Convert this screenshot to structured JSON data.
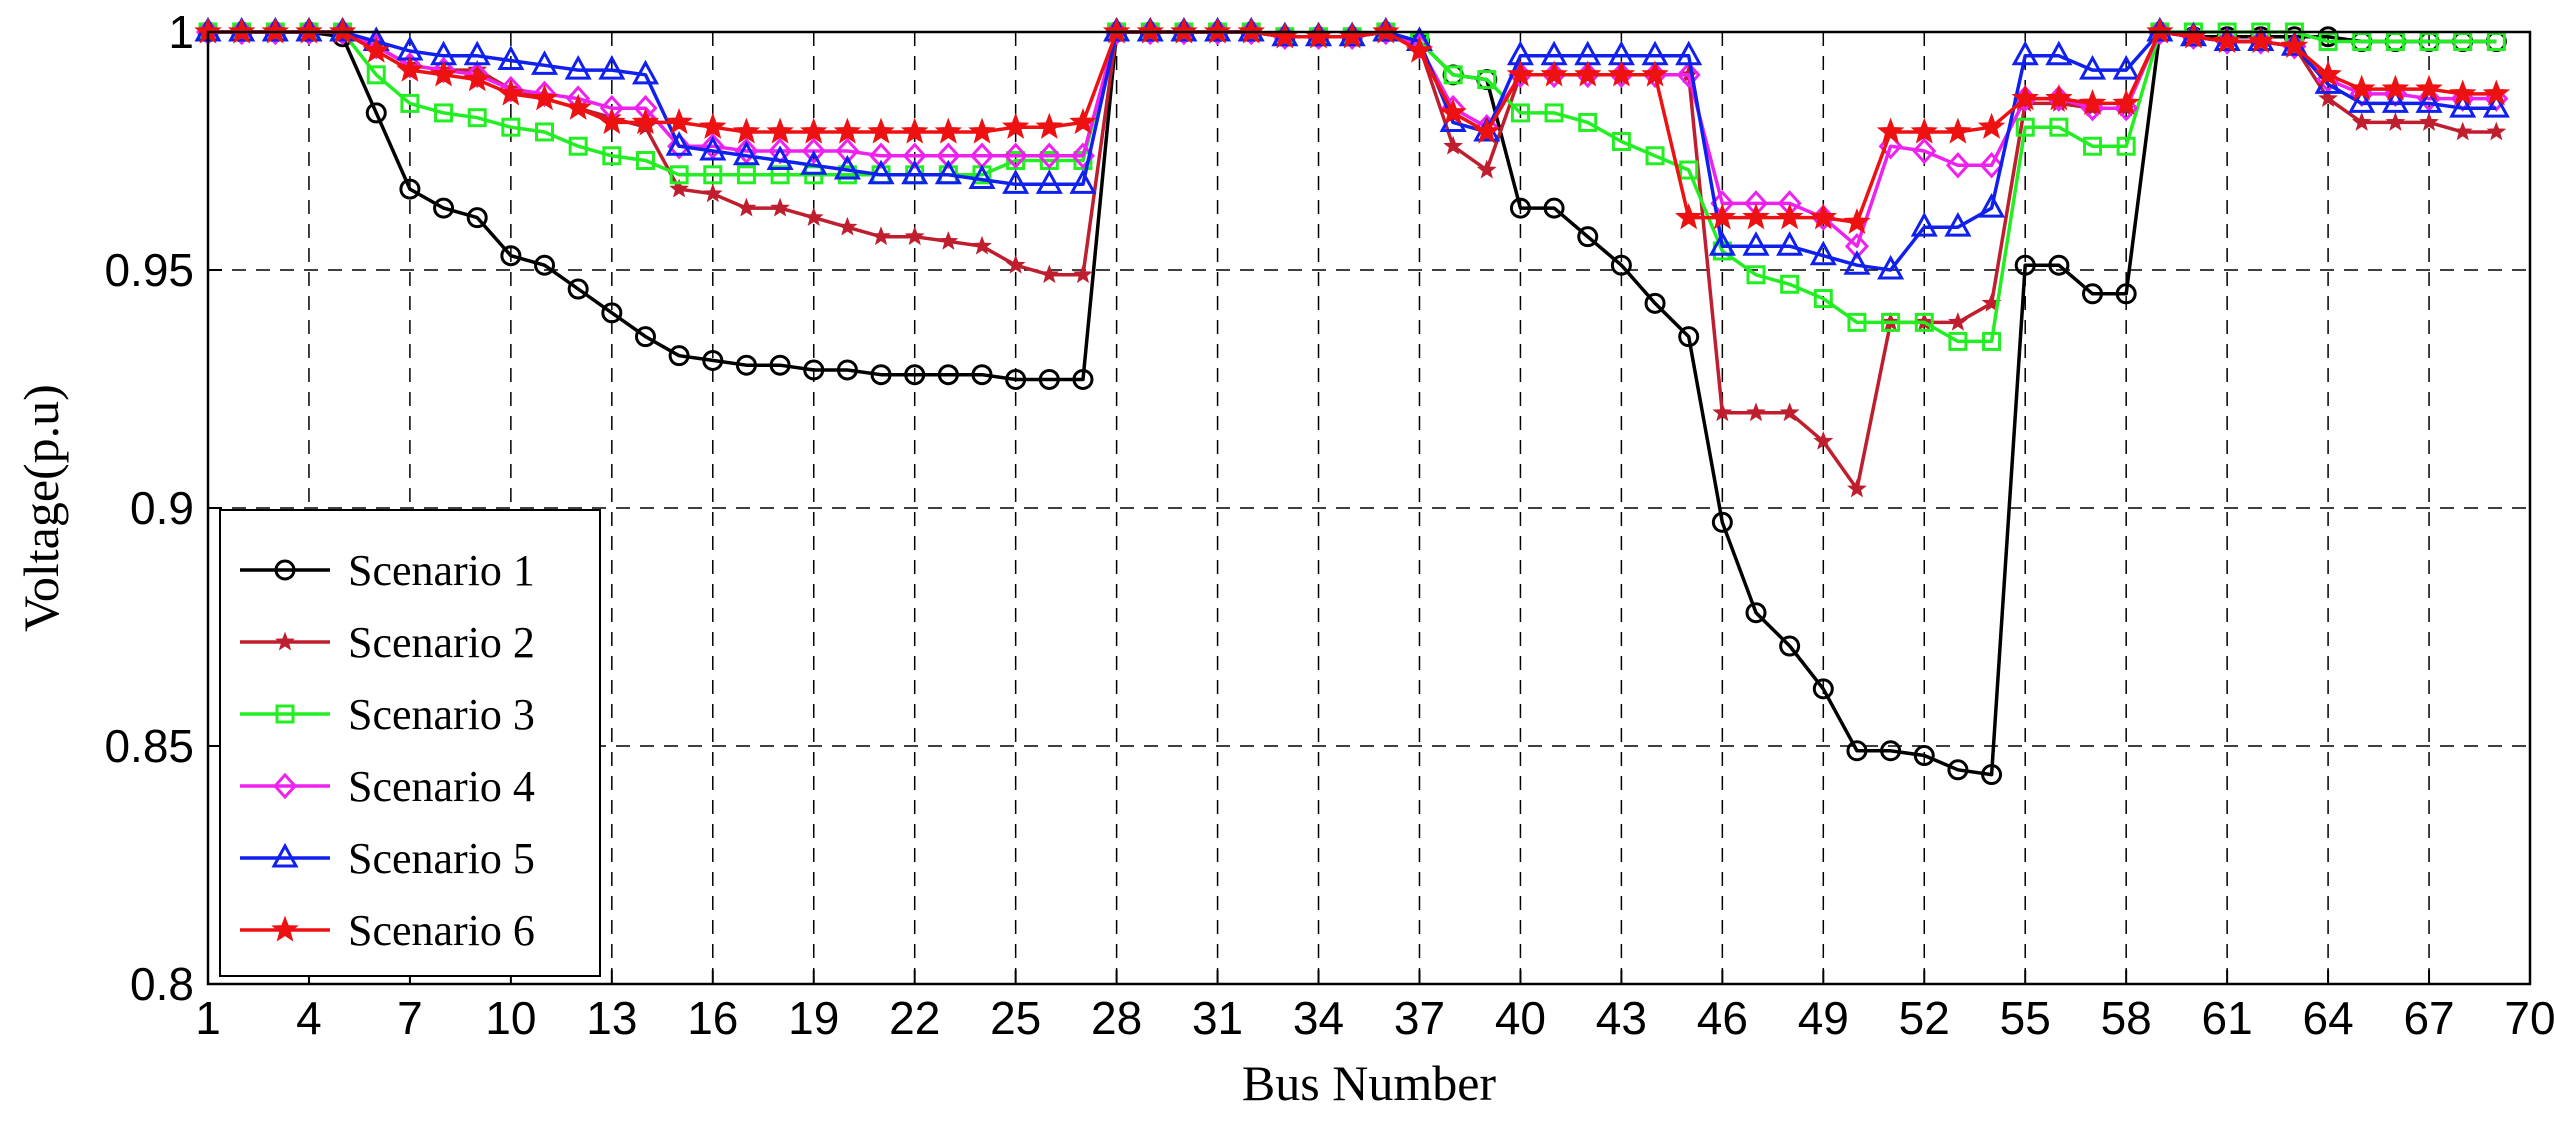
{
  "chart_data": {
    "type": "line",
    "xlabel": "Bus Number",
    "ylabel": "Voltage(p.u)",
    "xlim": [
      1,
      70
    ],
    "ylim": [
      0.8,
      1.0
    ],
    "xticks": [
      1,
      4,
      7,
      10,
      13,
      16,
      19,
      22,
      25,
      28,
      31,
      34,
      37,
      40,
      43,
      46,
      49,
      52,
      55,
      58,
      61,
      64,
      67,
      70
    ],
    "yticks": [
      0.8,
      0.85,
      0.9,
      0.95,
      1.0
    ],
    "ytick_labels": [
      "0.8",
      "0.85",
      "0.9",
      "0.95",
      "1"
    ],
    "grid": true,
    "legend_position": "lower-left",
    "x": [
      1,
      2,
      3,
      4,
      5,
      6,
      7,
      8,
      9,
      10,
      11,
      12,
      13,
      14,
      15,
      16,
      17,
      18,
      19,
      20,
      21,
      22,
      23,
      24,
      25,
      26,
      27,
      28,
      29,
      30,
      31,
      32,
      33,
      34,
      35,
      36,
      37,
      38,
      39,
      40,
      41,
      42,
      43,
      44,
      45,
      46,
      47,
      48,
      49,
      50,
      51,
      52,
      53,
      54,
      55,
      56,
      57,
      58,
      59,
      60,
      61,
      62,
      63,
      64,
      65,
      66,
      67,
      68,
      69
    ],
    "series": [
      {
        "name": "Scenario 1",
        "color": "#000000",
        "marker": "circle",
        "values": [
          1.0,
          1.0,
          1.0,
          1.0,
          0.999,
          0.983,
          0.967,
          0.963,
          0.961,
          0.953,
          0.951,
          0.946,
          0.941,
          0.936,
          0.932,
          0.931,
          0.93,
          0.93,
          0.929,
          0.929,
          0.928,
          0.928,
          0.928,
          0.928,
          0.927,
          0.927,
          0.927,
          1.0,
          1.0,
          1.0,
          1.0,
          1.0,
          0.999,
          0.999,
          0.999,
          1.0,
          0.998,
          0.991,
          0.99,
          0.963,
          0.963,
          0.957,
          0.951,
          0.943,
          0.936,
          0.897,
          0.878,
          0.871,
          0.862,
          0.849,
          0.849,
          0.848,
          0.845,
          0.844,
          0.951,
          0.951,
          0.945,
          0.945,
          1.0,
          0.999,
          0.999,
          0.999,
          0.999,
          0.999,
          0.998,
          0.998,
          0.998,
          0.998,
          0.998
        ]
      },
      {
        "name": "Scenario 2",
        "color": "#bf1e2e",
        "marker": "star",
        "values": [
          1.0,
          1.0,
          1.0,
          1.0,
          1.0,
          0.997,
          0.993,
          0.992,
          0.992,
          0.988,
          0.986,
          0.984,
          0.982,
          0.98,
          0.967,
          0.966,
          0.963,
          0.963,
          0.961,
          0.959,
          0.957,
          0.957,
          0.956,
          0.955,
          0.951,
          0.949,
          0.949,
          1.0,
          1.0,
          1.0,
          1.0,
          1.0,
          0.999,
          0.999,
          0.999,
          1.0,
          0.997,
          0.976,
          0.971,
          0.991,
          0.991,
          0.991,
          0.991,
          0.991,
          0.991,
          0.92,
          0.92,
          0.92,
          0.914,
          0.904,
          0.939,
          0.939,
          0.939,
          0.943,
          0.985,
          0.985,
          0.984,
          0.984,
          1.0,
          0.999,
          0.998,
          0.998,
          0.997,
          0.986,
          0.981,
          0.981,
          0.981,
          0.979,
          0.979
        ]
      },
      {
        "name": "Scenario 3",
        "color": "#22ee22",
        "marker": "square",
        "values": [
          1.0,
          1.0,
          1.0,
          1.0,
          1.0,
          0.991,
          0.985,
          0.983,
          0.982,
          0.98,
          0.979,
          0.976,
          0.974,
          0.973,
          0.97,
          0.97,
          0.97,
          0.97,
          0.97,
          0.97,
          0.97,
          0.97,
          0.97,
          0.97,
          0.973,
          0.973,
          0.973,
          1.0,
          1.0,
          1.0,
          1.0,
          1.0,
          0.999,
          0.999,
          0.999,
          1.0,
          0.998,
          0.991,
          0.99,
          0.983,
          0.983,
          0.981,
          0.977,
          0.974,
          0.971,
          0.954,
          0.949,
          0.947,
          0.944,
          0.939,
          0.939,
          0.939,
          0.935,
          0.935,
          0.98,
          0.98,
          0.976,
          0.976,
          1.0,
          1.0,
          1.0,
          1.0,
          1.0,
          0.998,
          0.998,
          0.998,
          0.998,
          0.998,
          0.998
        ]
      },
      {
        "name": "Scenario 4",
        "color": "#ee22ee",
        "marker": "diamond",
        "values": [
          1.0,
          1.0,
          1.0,
          1.0,
          1.0,
          0.997,
          0.993,
          0.992,
          0.991,
          0.988,
          0.987,
          0.986,
          0.984,
          0.984,
          0.976,
          0.976,
          0.975,
          0.975,
          0.975,
          0.975,
          0.974,
          0.974,
          0.974,
          0.974,
          0.974,
          0.974,
          0.974,
          1.0,
          1.0,
          1.0,
          1.0,
          1.0,
          0.999,
          0.999,
          0.999,
          1.0,
          0.997,
          0.984,
          0.98,
          0.991,
          0.991,
          0.991,
          0.991,
          0.991,
          0.991,
          0.964,
          0.964,
          0.964,
          0.961,
          0.955,
          0.976,
          0.975,
          0.972,
          0.972,
          0.986,
          0.986,
          0.984,
          0.984,
          1.0,
          0.999,
          0.998,
          0.998,
          0.997,
          0.99,
          0.987,
          0.987,
          0.986,
          0.986,
          0.986
        ]
      },
      {
        "name": "Scenario 5",
        "color": "#1020ee",
        "marker": "triangle",
        "values": [
          1.0,
          1.0,
          1.0,
          1.0,
          1.0,
          0.998,
          0.996,
          0.995,
          0.995,
          0.994,
          0.993,
          0.992,
          0.992,
          0.991,
          0.976,
          0.975,
          0.974,
          0.973,
          0.972,
          0.971,
          0.97,
          0.97,
          0.97,
          0.969,
          0.968,
          0.968,
          0.968,
          1.0,
          1.0,
          1.0,
          1.0,
          1.0,
          0.999,
          0.999,
          0.999,
          1.0,
          0.998,
          0.981,
          0.979,
          0.995,
          0.995,
          0.995,
          0.995,
          0.995,
          0.995,
          0.955,
          0.955,
          0.955,
          0.953,
          0.951,
          0.95,
          0.959,
          0.959,
          0.963,
          0.995,
          0.995,
          0.992,
          0.992,
          1.0,
          0.999,
          0.998,
          0.998,
          0.997,
          0.989,
          0.985,
          0.985,
          0.985,
          0.984,
          0.984
        ]
      },
      {
        "name": "Scenario 6",
        "color": "#ee1111",
        "marker": "star",
        "values": [
          1.0,
          1.0,
          1.0,
          1.0,
          1.0,
          0.996,
          0.992,
          0.991,
          0.99,
          0.987,
          0.986,
          0.984,
          0.981,
          0.981,
          0.981,
          0.98,
          0.979,
          0.979,
          0.979,
          0.979,
          0.979,
          0.979,
          0.979,
          0.979,
          0.98,
          0.98,
          0.981,
          1.0,
          1.0,
          1.0,
          1.0,
          1.0,
          0.999,
          0.999,
          0.999,
          1.0,
          0.996,
          0.983,
          0.979,
          0.991,
          0.991,
          0.991,
          0.991,
          0.991,
          0.961,
          0.961,
          0.961,
          0.961,
          0.961,
          0.96,
          0.979,
          0.979,
          0.979,
          0.98,
          0.986,
          0.986,
          0.985,
          0.985,
          1.0,
          0.999,
          0.998,
          0.998,
          0.997,
          0.991,
          0.988,
          0.988,
          0.988,
          0.987,
          0.987
        ]
      }
    ]
  }
}
